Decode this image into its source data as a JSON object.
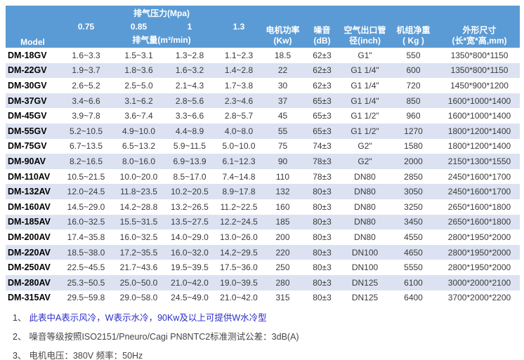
{
  "colors": {
    "header_bg": "#5B9BD5",
    "row_alt": "#DCE2F1",
    "note_blue": "#2B2BC8",
    "note_gray": "#454545"
  },
  "table": {
    "header": {
      "model": "Model",
      "pressure_group": "排气压力(Mpa)",
      "pressures": [
        "0.75",
        "0.85",
        "1",
        "1.3"
      ],
      "capacity_label": "排气量(m³/min)",
      "power": "电机功率\n(Kw)",
      "noise": "噪音\n(dB)",
      "outlet": "空气出口管\n径(inch)",
      "weight": "机组净重\n( Kg )",
      "dimensions": "外形尺寸\n(长*宽*高,mm)"
    },
    "rows": [
      [
        "DM-18GV",
        "1.6~3.3",
        "1.5~3.1",
        "1.3~2.8",
        "1.1~2.3",
        "18.5",
        "62±3",
        "G1\"",
        "550",
        "1350*800*1150"
      ],
      [
        "DM-22GV",
        "1.9~3.7",
        "1.8~3.6",
        "1.6~3.2",
        "1.4~2.8",
        "22",
        "62±3",
        "G1 1/4\"",
        "600",
        "1350*800*1150"
      ],
      [
        "DM-30GV",
        "2.6~5.2",
        "2.5~5.0",
        "2.1~4.3",
        "1.7~3.8",
        "30",
        "62±3",
        "G1 1/4\"",
        "720",
        "1450*900*1200"
      ],
      [
        "DM-37GV",
        "3.4~6.6",
        "3.1~6.2",
        "2.8~5.6",
        "2.3~4.6",
        "37",
        "65±3",
        "G1 1/4\"",
        "850",
        "1600*1000*1400"
      ],
      [
        "DM-45GV",
        "3.9~7.8",
        "3.6~7.4",
        "3.3~6.6",
        "2.8~5.7",
        "45",
        "65±3",
        "G1 1/2\"",
        "960",
        "1600*1000*1400"
      ],
      [
        "DM-55GV",
        "5.2~10.5",
        "4.9~10.0",
        "4.4~8.9",
        "4.0~8.0",
        "55",
        "65±3",
        "G1 1/2\"",
        "1270",
        "1800*1200*1400"
      ],
      [
        "DM-75GV",
        "6.7~13.5",
        "6.5~13.2",
        "5.9~11.5",
        "5.0~10.0",
        "75",
        "74±3",
        "G2\"",
        "1580",
        "1800*1200*1400"
      ],
      [
        "DM-90AV",
        "8.2~16.5",
        "8.0~16.0",
        "6.9~13.9",
        "6.1~12.3",
        "90",
        "78±3",
        "G2\"",
        "2000",
        "2150*1300*1550"
      ],
      [
        "DM-110AV",
        "10.5~21.5",
        "10.0~20.0",
        "8.5~17.0",
        "7.4~14.8",
        "110",
        "78±3",
        "DN80",
        "2850",
        "2450*1600*1700"
      ],
      [
        "DM-132AV",
        "12.0~24.5",
        "11.8~23.5",
        "10.2~20.5",
        "8.9~17.8",
        "132",
        "80±3",
        "DN80",
        "3050",
        "2450*1600*1700"
      ],
      [
        "DM-160AV",
        "14.5~29.0",
        "14.2~28.8",
        "13.2~26.5",
        "11.2~22.5",
        "160",
        "80±3",
        "DN80",
        "3250",
        "2650*1600*1800"
      ],
      [
        "DM-185AV",
        "16.0~32.5",
        "15.5~31.5",
        "13.5~27.5",
        "12.2~24.5",
        "185",
        "80±3",
        "DN80",
        "3450",
        "2650*1600*1800"
      ],
      [
        "DM-200AV",
        "17.4~35.8",
        "16.0~32.5",
        "14.0~29.0",
        "13.0~26.0",
        "200",
        "80±3",
        "DN80",
        "4550",
        "2800*1950*2000"
      ],
      [
        "DM-220AV",
        "18.5~38.0",
        "17.2~35.5",
        "16.0~32.0",
        "14.2~29.5",
        "220",
        "80±3",
        "DN100",
        "4650",
        "2800*1950*2000"
      ],
      [
        "DM-250AV",
        "22.5~45.5",
        "21.7~43.6",
        "19.5~39.5",
        "17.5~36.0",
        "250",
        "80±3",
        "DN100",
        "5550",
        "2800*1950*2000"
      ],
      [
        "DM-280AV",
        "25.3~50.5",
        "25.0~50.0",
        "21.0~42.0",
        "19.0~39.5",
        "280",
        "80±3",
        "DN125",
        "6100",
        "3000*2000*2100"
      ],
      [
        "DM-315AV",
        "29.5~59.8",
        "29.0~58.0",
        "24.5~49.0",
        "21.0~42.0",
        "315",
        "80±3",
        "DN125",
        "6400",
        "3700*2000*2200"
      ]
    ]
  },
  "notes": [
    {
      "num": "1、",
      "text": "此表中A表示风冷，W表示水冷，90Kw及以上可提供W水冷型",
      "accent": true
    },
    {
      "num": "2、",
      "text": "噪音等级按照ISO2151/Pneuro/Cagi PN8NTC2标准测试公差：3dB(A)",
      "accent": false
    },
    {
      "num": "3、",
      "text": "电机电压：380V 频率：50Hz",
      "accent": false
    }
  ]
}
